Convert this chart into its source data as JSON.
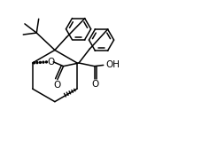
{
  "bg_color": "#ffffff",
  "line_color": "#000000",
  "lw": 1.1,
  "fig_width": 2.45,
  "fig_height": 1.59,
  "dpi": 100,
  "xlim": [
    0,
    10
  ],
  "ylim": [
    0,
    6.5
  ]
}
